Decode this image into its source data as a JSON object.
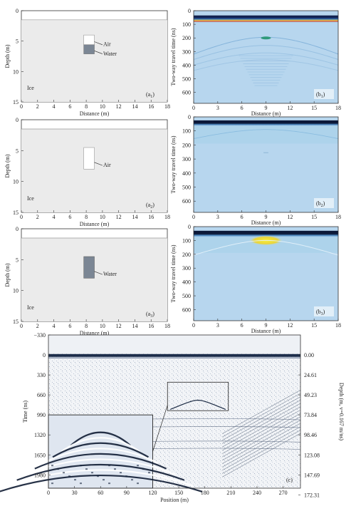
{
  "panels_a": [
    {
      "label": "(a",
      "label_sub": "1",
      "x_label": "Distance (m)",
      "y_label": "Depth (m)",
      "x_ticks": [
        "0",
        "2",
        "4",
        "6",
        "8",
        "10",
        "12",
        "14",
        "16",
        "18"
      ],
      "y_ticks": [
        "0",
        "5",
        "10",
        "15"
      ],
      "ice_label": "Ice",
      "annotations": [
        "Air",
        "Water"
      ]
    },
    {
      "label": "(a",
      "label_sub": "2",
      "x_label": "Distance (m)",
      "y_label": "Depth (m)",
      "x_ticks": [
        "0",
        "2",
        "4",
        "6",
        "8",
        "10",
        "12",
        "14",
        "16",
        "18"
      ],
      "y_ticks": [
        "0",
        "5",
        "10",
        "15"
      ],
      "ice_label": "Ice",
      "annotations": [
        "Air"
      ]
    },
    {
      "label": "(a",
      "label_sub": "3",
      "x_label": "Distance (m)",
      "y_label": "Depth (m)",
      "x_ticks": [
        "0",
        "2",
        "4",
        "6",
        "8",
        "10",
        "12",
        "14",
        "16",
        "18"
      ],
      "y_ticks": [
        "0",
        "5",
        "10",
        "15"
      ],
      "ice_label": "Ice",
      "annotations": [
        "Water"
      ]
    }
  ],
  "panels_b": [
    {
      "label": "(b",
      "label_sub": "1",
      "x_label": "Distance (m)",
      "y_label": "Two-way travel time (ns)",
      "x_ticks": [
        "0",
        "3",
        "6",
        "9",
        "12",
        "15",
        "18"
      ],
      "y_ticks": [
        "0",
        "100",
        "200",
        "300",
        "400",
        "500",
        "600"
      ]
    },
    {
      "label": "(b",
      "label_sub": "2",
      "x_label": "Distance (m)",
      "y_label": "Two-way travel time (ns)",
      "x_ticks": [
        "0",
        "3",
        "6",
        "9",
        "12",
        "15",
        "18"
      ],
      "y_ticks": [
        "0",
        "100",
        "200",
        "300",
        "400",
        "500",
        "600"
      ]
    },
    {
      "label": "(b",
      "label_sub": "3",
      "x_label": "Distance (m)",
      "y_label": "Two-way travel time (ns)",
      "x_ticks": [
        "0",
        "3",
        "6",
        "9",
        "12",
        "15",
        "18"
      ],
      "y_ticks": [
        "0",
        "100",
        "200",
        "300",
        "400",
        "500",
        "600"
      ]
    }
  ],
  "panel_c": {
    "label": "(c)",
    "x_label": "Position (m)",
    "y_label_left": "Time (ns)",
    "y_label_right": "Depth (m, v=0.167 m/ns)",
    "x_ticks": [
      "0",
      "30",
      "60",
      "90",
      "120",
      "150",
      "180",
      "210",
      "240",
      "270"
    ],
    "y_ticks_left": [
      "−330",
      "0",
      "330",
      "660",
      "990",
      "1320",
      "1650",
      "1980"
    ],
    "y_ticks_right": [
      "0.00",
      "24.61",
      "49.23",
      "73.84",
      "98.46",
      "123.08",
      "147.69",
      "172.31"
    ]
  },
  "colors": {
    "ice": "#ebebeb",
    "water": "#7b8694",
    "gpr_bg": "#b7d6ee",
    "gpr_band_dark": "#0d1b3e",
    "gpr_band_red": "#e0503a",
    "gpr_band_yellow": "#f2e43a"
  }
}
